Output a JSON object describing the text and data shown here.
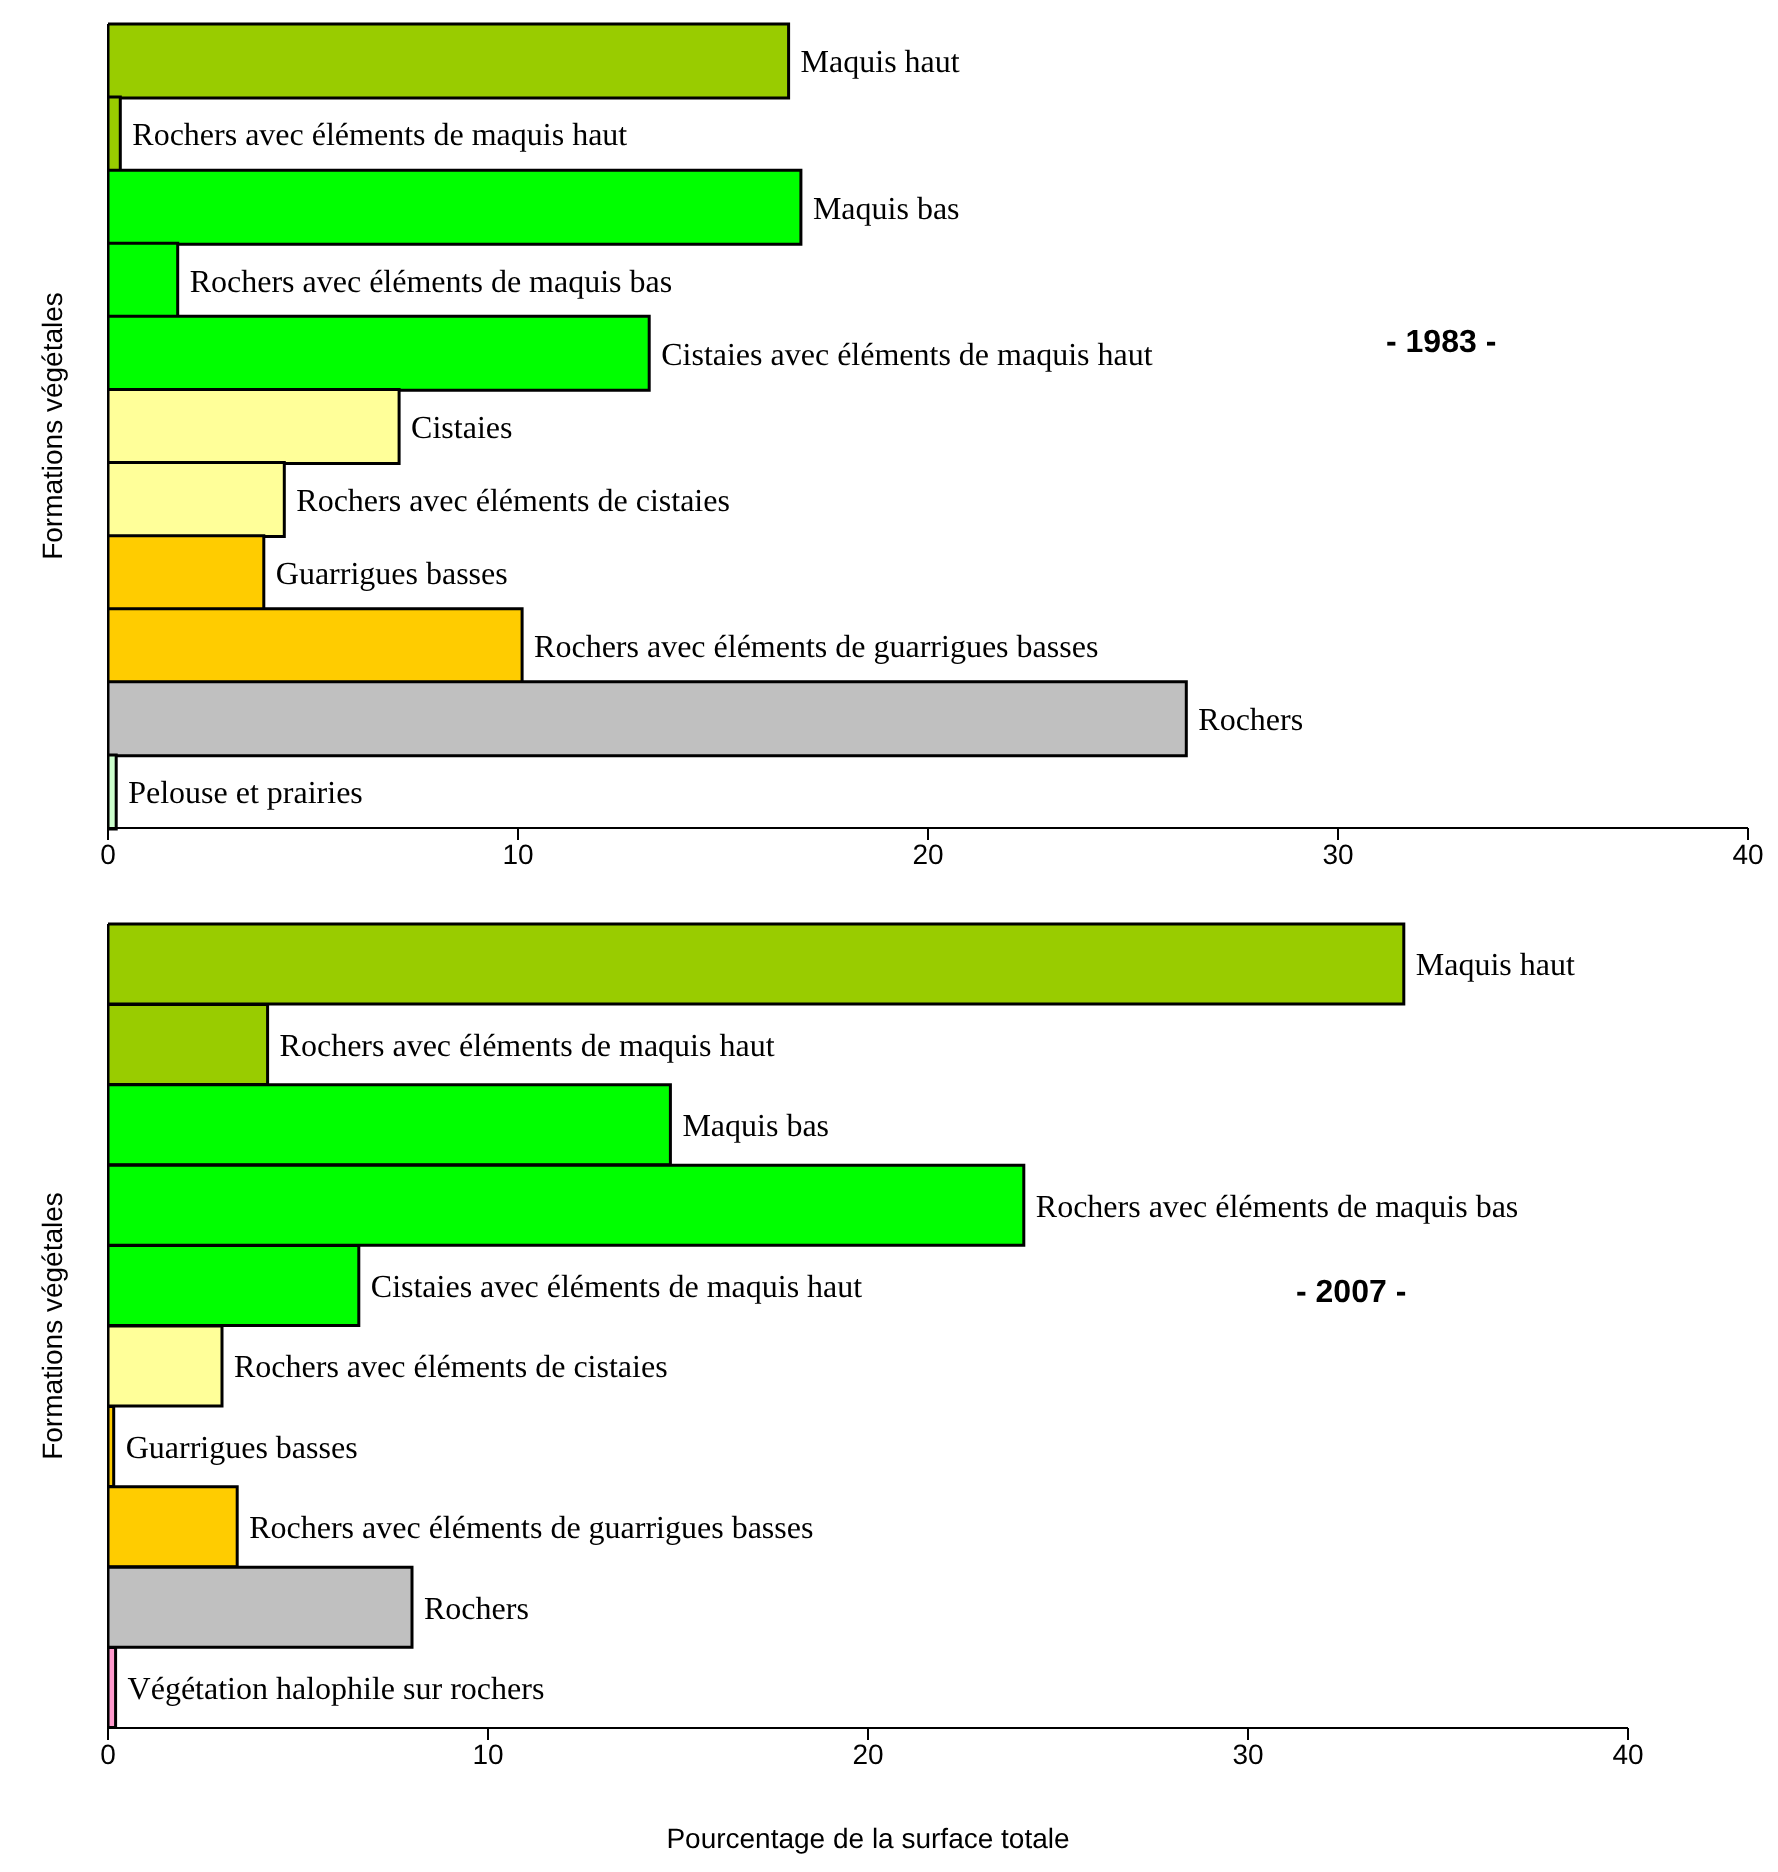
{
  "chart_data": [
    {
      "type": "bar",
      "orientation": "horizontal",
      "ylabel": "Formations végétales",
      "annotations": [
        "- 1983 -"
      ],
      "tick_labels": "x",
      "categories": [
        "Maquis haut",
        "Rochers avec éléments de maquis haut",
        "Maquis bas",
        "Rochers avec éléments de maquis bas",
        "Cistaies avec éléments de maquis haut",
        "Cistaies",
        "Rochers avec éléments de cistaies",
        "Guarrigues basses",
        "Rochers avec éléments de guarrigues basses",
        "Rochers",
        "Pelouse et prairies"
      ],
      "values": [
        16.6,
        0.3,
        16.9,
        1.7,
        13.2,
        7.1,
        4.3,
        3.8,
        10.1,
        26.3,
        0.2
      ],
      "colors": [
        "#99cc00",
        "#99cc00",
        "#00ff00",
        "#00ff00",
        "#00ff00",
        "#ffff99",
        "#ffff99",
        "#ffcc00",
        "#ffcc00",
        "#c0c0c0",
        "#ccffcc"
      ],
      "xlim": [
        0,
        40
      ],
      "xticks": [
        0,
        10,
        20,
        30,
        40
      ],
      "grid": false,
      "legend": false
    },
    {
      "type": "bar",
      "orientation": "horizontal",
      "ylabel": "Formations végétales",
      "xlabel": "Pourcentage de la surface totale",
      "annotations": [
        "- 2007 -"
      ],
      "tick_labels": "x",
      "categories": [
        "Maquis haut",
        "Rochers avec éléments de maquis haut",
        "Maquis bas",
        "Rochers avec éléments de maquis bas",
        "Cistaies avec éléments de maquis haut",
        "Rochers avec éléments de cistaies",
        "Guarrigues basses",
        "Rochers avec éléments de guarrigues basses",
        "Rochers",
        "Végétation halophile sur rochers"
      ],
      "values": [
        34.1,
        4.2,
        14.8,
        24.1,
        6.6,
        3.0,
        0.15,
        3.4,
        8.0,
        0.2
      ],
      "colors": [
        "#99cc00",
        "#99cc00",
        "#00ff00",
        "#00ff00",
        "#00ff00",
        "#ffff99",
        "#ffcc00",
        "#ffcc00",
        "#c0c0c0",
        "#ff99cc"
      ],
      "xlim": [
        0,
        40
      ],
      "xticks": [
        0,
        10,
        20,
        30,
        40
      ],
      "grid": false,
      "legend": false
    }
  ]
}
